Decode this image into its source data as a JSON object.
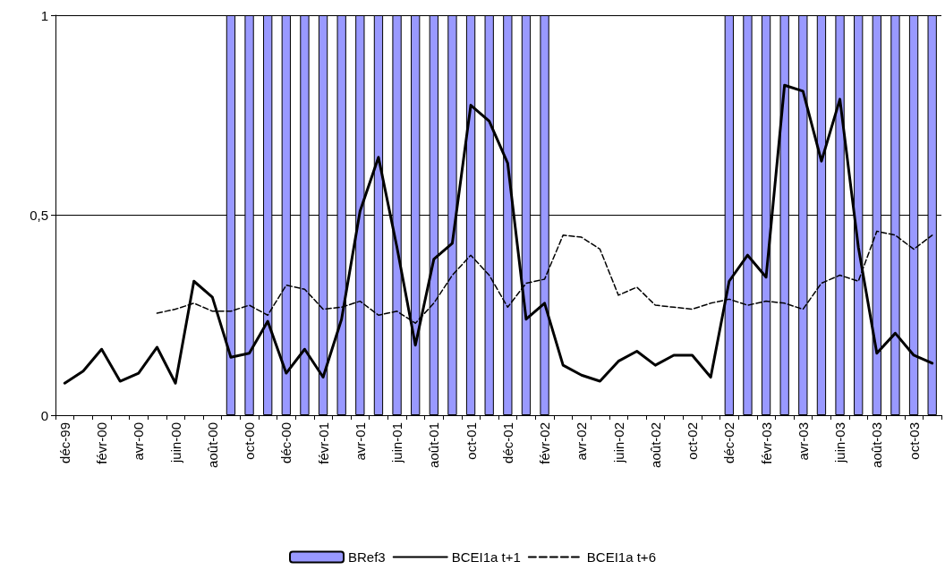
{
  "chart_data": {
    "type": "line",
    "categories": [
      "déc-99",
      null,
      "févr-00",
      null,
      "avr-00",
      null,
      "juin-00",
      null,
      "août-00",
      null,
      "oct-00",
      null,
      "déc-00",
      null,
      "févr-01",
      null,
      "avr-01",
      null,
      "juin-01",
      null,
      "août-01",
      null,
      "oct-01",
      null,
      "déc-01",
      null,
      "févr-02",
      null,
      "avr-02",
      null,
      "juin-02",
      null,
      "août-02",
      null,
      "oct-02",
      null,
      "déc-02",
      null,
      "févr-03",
      null,
      "avr-03",
      null,
      "juin-03",
      null,
      "août-03",
      null,
      "oct-03",
      null
    ],
    "series": [
      {
        "name": "BRef3",
        "type": "bar",
        "color": "#9999ff",
        "values": [
          0,
          0,
          0,
          0,
          0,
          0,
          0,
          0,
          0,
          1,
          1,
          1,
          1,
          1,
          1,
          1,
          1,
          1,
          1,
          1,
          1,
          1,
          1,
          1,
          1,
          1,
          1,
          0,
          0,
          0,
          0,
          0,
          0,
          0,
          0,
          0,
          1,
          1,
          1,
          1,
          1,
          1,
          1,
          1,
          1,
          1,
          1,
          1
        ]
      },
      {
        "name": "BCEI1a t+1",
        "color": "#000000",
        "line_style": "solid",
        "values": [
          0.08,
          0.11,
          0.165,
          0.085,
          0.105,
          0.17,
          0.08,
          0.335,
          0.295,
          0.145,
          0.155,
          0.235,
          0.105,
          0.165,
          0.095,
          0.24,
          0.51,
          0.645,
          0.42,
          0.175,
          0.39,
          0.43,
          0.775,
          0.735,
          0.63,
          0.24,
          0.28,
          0.125,
          0.1,
          0.085,
          0.135,
          0.16,
          0.125,
          0.15,
          0.15,
          0.095,
          0.335,
          0.4,
          0.345,
          0.825,
          0.81,
          0.635,
          0.79,
          0.42,
          0.155,
          0.205,
          0.15,
          0.13
        ]
      },
      {
        "name": "BCEI1a t+6",
        "color": "#000000",
        "line_style": "dashed",
        "values": [
          null,
          null,
          null,
          null,
          null,
          0.255,
          0.265,
          0.28,
          0.26,
          0.26,
          0.275,
          0.25,
          0.325,
          0.315,
          0.265,
          0.27,
          0.285,
          0.25,
          0.26,
          0.23,
          0.28,
          0.35,
          0.4,
          0.35,
          0.27,
          0.33,
          0.34,
          0.45,
          0.445,
          0.415,
          0.3,
          0.32,
          0.275,
          0.27,
          0.265,
          0.28,
          0.29,
          0.275,
          0.285,
          0.28,
          0.265,
          0.33,
          0.35,
          0.335,
          0.46,
          0.45,
          0.415,
          0.45
        ]
      }
    ],
    "ylim": [
      0,
      1
    ],
    "yticks": [
      0,
      {
        "value": 0.5,
        "label": "0,5"
      },
      1
    ],
    "grid": "y",
    "legend": "bottom",
    "marker": "none"
  }
}
